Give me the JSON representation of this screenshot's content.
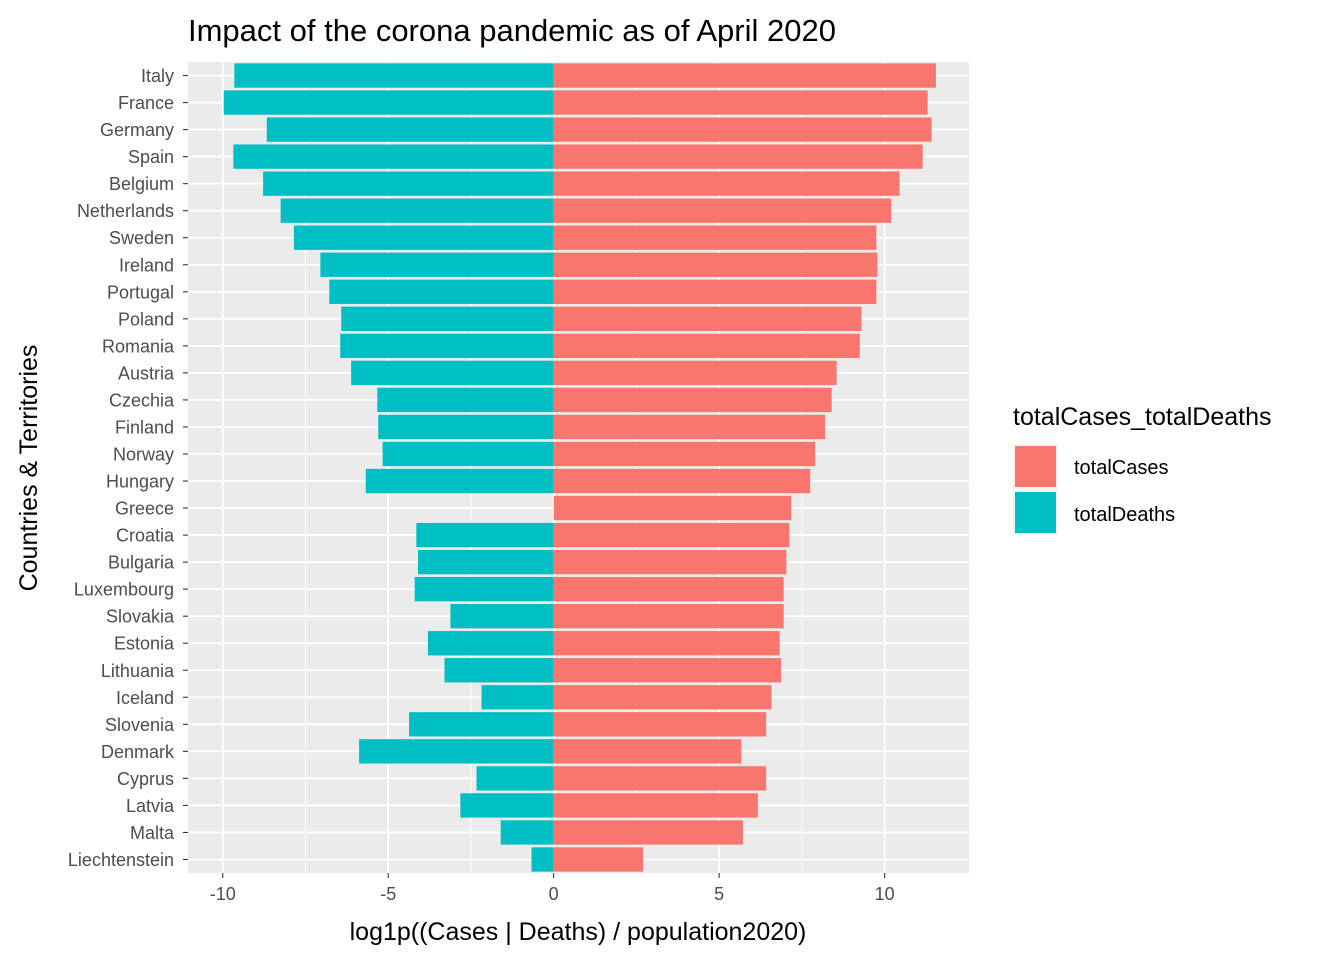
{
  "chart_data": {
    "type": "bar",
    "orientation": "horizontal",
    "title": "Impact of the corona pandemic as of April 2020",
    "xlabel": "log1p((Cases | Deaths) / population2020)",
    "ylabel": "Countries & Territories",
    "xlim": [
      -11.05,
      12.55
    ],
    "x_ticks": [
      -10,
      -5,
      0,
      5,
      10
    ],
    "x_tick_labels": [
      "-10",
      "-5",
      "0",
      "5",
      "10"
    ],
    "grid": true,
    "legend_position": "right",
    "legend_title": "totalCases_totalDeaths",
    "categories": [
      "Italy",
      "France",
      "Germany",
      "Spain",
      "Belgium",
      "Netherlands",
      "Sweden",
      "Ireland",
      "Portugal",
      "Poland",
      "Romania",
      "Austria",
      "Czechia",
      "Finland",
      "Norway",
      "Hungary",
      "Greece",
      "Croatia",
      "Bulgaria",
      "Luxembourg",
      "Slovakia",
      "Estonia",
      "Lithuania",
      "Iceland",
      "Slovenia",
      "Denmark",
      "Cyprus",
      "Latvia",
      "Malta",
      "Liechtenstein"
    ],
    "series": [
      {
        "name": "totalCases",
        "color": "#F8766D",
        "values": [
          11.55,
          11.3,
          11.42,
          11.15,
          10.45,
          10.2,
          9.75,
          9.78,
          9.75,
          9.3,
          9.25,
          8.55,
          8.4,
          8.2,
          7.9,
          7.75,
          7.18,
          7.12,
          7.03,
          6.95,
          6.95,
          6.83,
          6.87,
          6.58,
          6.42,
          5.67,
          6.42,
          6.17,
          5.72,
          2.7
        ]
      },
      {
        "name": "totalDeaths",
        "color": "#00BFC4",
        "values": [
          -9.65,
          -9.97,
          -8.67,
          -9.68,
          -8.78,
          -8.25,
          -7.85,
          -7.05,
          -6.78,
          -6.42,
          -6.45,
          -6.12,
          -5.33,
          -5.3,
          -5.17,
          -5.68,
          0,
          -4.15,
          -4.1,
          -4.2,
          -3.12,
          -3.8,
          -3.3,
          -2.18,
          -4.37,
          -5.88,
          -2.33,
          -2.82,
          -1.6,
          -0.67
        ]
      }
    ],
    "panel_background": "#EBEBEB",
    "grid_color": "#FFFFFF"
  }
}
